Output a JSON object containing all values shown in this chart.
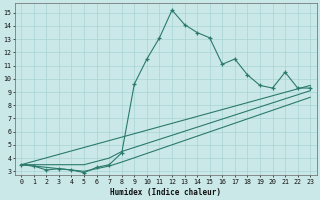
{
  "xlabel": "Humidex (Indice chaleur)",
  "xlim": [
    -0.5,
    23.5
  ],
  "ylim": [
    2.7,
    15.7
  ],
  "xticks": [
    0,
    1,
    2,
    3,
    4,
    5,
    6,
    7,
    8,
    9,
    10,
    11,
    12,
    13,
    14,
    15,
    16,
    17,
    18,
    19,
    20,
    21,
    22,
    23
  ],
  "yticks": [
    3,
    4,
    5,
    6,
    7,
    8,
    9,
    10,
    11,
    12,
    13,
    14,
    15
  ],
  "bg_color": "#cbe8e8",
  "line_color": "#2a7a6a",
  "grid_color": "#a8d4d4",
  "series": [
    {
      "x": [
        0,
        1,
        2,
        3,
        4,
        5,
        6,
        7,
        8,
        9,
        10,
        11,
        12,
        13,
        14,
        15,
        16,
        17,
        18,
        19,
        20,
        21,
        22,
        23
      ],
      "y": [
        3.5,
        3.4,
        3.1,
        3.2,
        3.1,
        2.9,
        3.3,
        3.5,
        4.4,
        9.6,
        11.5,
        13.1,
        15.2,
        14.1,
        13.5,
        13.1,
        11.1,
        11.5,
        10.3,
        9.5,
        9.3,
        10.5,
        9.3,
        9.3
      ],
      "markers": true
    },
    {
      "x": [
        0,
        23
      ],
      "y": [
        3.5,
        9.5
      ],
      "markers": false
    },
    {
      "x": [
        0,
        5,
        7,
        8,
        23
      ],
      "y": [
        3.5,
        3.5,
        4.0,
        4.5,
        9.1
      ],
      "markers": false
    },
    {
      "x": [
        0,
        5,
        6,
        7,
        8,
        23
      ],
      "y": [
        3.5,
        3.0,
        3.2,
        3.4,
        3.7,
        8.6
      ],
      "markers": false
    }
  ]
}
